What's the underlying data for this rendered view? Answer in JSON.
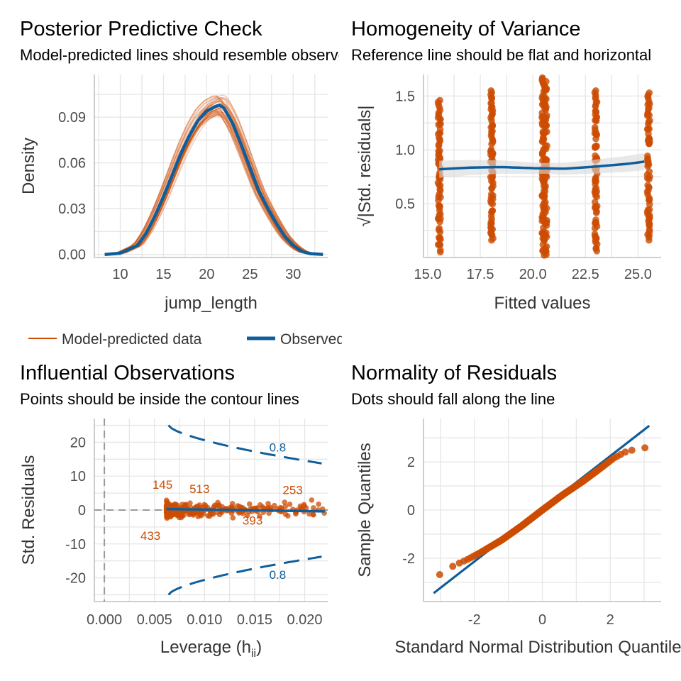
{
  "colors": {
    "accent": "#CC4C02",
    "observed": "#0F5E9C",
    "grid": "#E6E6E6",
    "ci_band": "#D9D9D9",
    "reference": "#999999"
  },
  "chart_data": [
    {
      "panel": "ppc",
      "type": "line",
      "title": "Posterior Predictive Check",
      "subtitle": "Model-predicted lines should resemble observed data line",
      "xlabel": "jump_length",
      "ylabel": "Density",
      "xlim": [
        7,
        34
      ],
      "ylim": [
        -0.002,
        0.118
      ],
      "xticks": [
        10,
        15,
        20,
        25,
        30
      ],
      "yticks": [
        0.0,
        0.03,
        0.06,
        0.09
      ],
      "ytick_labels": [
        "0.00",
        "0.03",
        "0.06",
        "0.09"
      ],
      "grid": true,
      "legend": {
        "position": "bottom",
        "entries": [
          "Model-predicted data",
          "Observed data"
        ]
      },
      "series": [
        {
          "name": "Observed data",
          "role": "observed",
          "x": [
            8.2,
            10,
            12,
            13,
            14,
            15,
            16,
            17,
            18,
            19,
            20,
            21,
            21.5,
            22,
            23,
            24,
            25,
            26,
            27,
            28,
            29,
            30,
            31,
            32,
            33.5
          ],
          "y": [
            0.0,
            0.0008,
            0.006,
            0.014,
            0.025,
            0.038,
            0.052,
            0.066,
            0.078,
            0.088,
            0.094,
            0.097,
            0.098,
            0.096,
            0.086,
            0.072,
            0.057,
            0.042,
            0.031,
            0.021,
            0.012,
            0.006,
            0.002,
            0.0005,
            0.0
          ]
        },
        {
          "name": "Model-predicted data",
          "role": "predicted",
          "draws": 40,
          "spread": 0.012
        }
      ]
    },
    {
      "panel": "homogeneity",
      "type": "scatter",
      "title": "Homogeneity of Variance",
      "subtitle": "Reference line should be flat and horizontal",
      "xlabel": "Fitted values",
      "ylabel": "√|Std. residuals|",
      "xlim": [
        14.8,
        26.1
      ],
      "ylim": [
        0.0,
        1.7
      ],
      "xticks": [
        15.0,
        17.5,
        20.0,
        22.5,
        25.0
      ],
      "xtick_labels": [
        "15.0",
        "17.5",
        "20.0",
        "22.5",
        "25.0"
      ],
      "yticks": [
        0.5,
        1.0,
        1.5
      ],
      "ytick_labels": [
        "0.5",
        "1.0",
        "1.5"
      ],
      "grid": true,
      "groups": [
        {
          "x": 15.55,
          "min": 0.05,
          "max": 1.46,
          "n": 70
        },
        {
          "x": 18.05,
          "min": 0.16,
          "max": 1.55,
          "n": 80
        },
        {
          "x": 20.55,
          "min": 0.02,
          "max": 1.67,
          "n": 150
        },
        {
          "x": 23.0,
          "min": 0.06,
          "max": 1.55,
          "n": 80
        },
        {
          "x": 25.5,
          "min": 0.16,
          "max": 1.53,
          "n": 70
        }
      ],
      "smooth": {
        "x": [
          15.55,
          17.0,
          18.5,
          20.0,
          21.5,
          23.0,
          24.5,
          25.5
        ],
        "y": [
          0.82,
          0.835,
          0.84,
          0.83,
          0.825,
          0.845,
          0.87,
          0.895
        ],
        "ci": 0.05
      }
    },
    {
      "panel": "influential",
      "type": "scatter",
      "title": "Influential Observations",
      "subtitle": "Points should be inside the contour lines",
      "xlabel": "Leverage (h",
      "xlabel_sub": "ii",
      "xlabel_end": ")",
      "ylabel": "Std. Residuals",
      "xlim": [
        -0.001,
        0.0223
      ],
      "ylim": [
        -27,
        27
      ],
      "xticks": [
        0.0,
        0.005,
        0.01,
        0.015,
        0.02
      ],
      "xtick_labels": [
        "0.000",
        "0.005",
        "0.010",
        "0.015",
        "0.020"
      ],
      "yticks": [
        -20,
        -10,
        0,
        10,
        20
      ],
      "ytick_labels": [
        "-20",
        "-10",
        "0",
        "10",
        "20"
      ],
      "grid": true,
      "points_x_range": [
        0.0062,
        0.022
      ],
      "points_y_range": [
        -3,
        3
      ],
      "n_points": 300,
      "fit_line": {
        "x": [
          0.0062,
          0.022
        ],
        "y": [
          0.3,
          -0.4
        ]
      },
      "contour_level": "0.8",
      "contour_labels": [
        {
          "text": "0.8",
          "x": 0.0173,
          "y": 18.5
        },
        {
          "text": "0.8",
          "x": 0.0173,
          "y": -19
        }
      ],
      "outlier_labels": [
        {
          "text": "145",
          "x": 0.0058,
          "y": 7.5
        },
        {
          "text": "513",
          "x": 0.0095,
          "y": 6.3
        },
        {
          "text": "253",
          "x": 0.0188,
          "y": 6.0
        },
        {
          "text": "393",
          "x": 0.0148,
          "y": -3.0
        },
        {
          "text": "433",
          "x": 0.0046,
          "y": -7.5
        }
      ]
    },
    {
      "panel": "normality",
      "type": "scatter",
      "title": "Normality of Residuals",
      "subtitle": "Dots should fall along the line",
      "xlabel": "Standard Normal Distribution Quantiles",
      "ylabel": "Sample Quantiles",
      "xlim": [
        -3.5,
        3.5
      ],
      "ylim": [
        -3.8,
        3.8
      ],
      "xticks": [
        -2,
        0,
        2
      ],
      "xtick_labels": [
        "-2",
        "0",
        "2"
      ],
      "yticks": [
        -2,
        0,
        2
      ],
      "ytick_labels": [
        "-2",
        "0",
        "2"
      ],
      "grid": true,
      "reference_line": {
        "x": [
          -3.2,
          3.15
        ],
        "y": [
          -3.45,
          3.5
        ]
      },
      "n_points": 250,
      "qq_curve": {
        "x": [
          -3.2,
          -2.9,
          -2.6,
          -2.2,
          -1.8,
          -1.2,
          -0.6,
          0.0,
          0.6,
          1.2,
          1.7,
          2.1,
          2.5,
          2.9,
          3.15
        ],
        "y": [
          -2.8,
          -2.6,
          -2.3,
          -2.05,
          -1.75,
          -1.25,
          -0.65,
          0.0,
          0.63,
          1.2,
          1.72,
          2.15,
          2.45,
          2.55,
          2.62
        ]
      }
    }
  ]
}
